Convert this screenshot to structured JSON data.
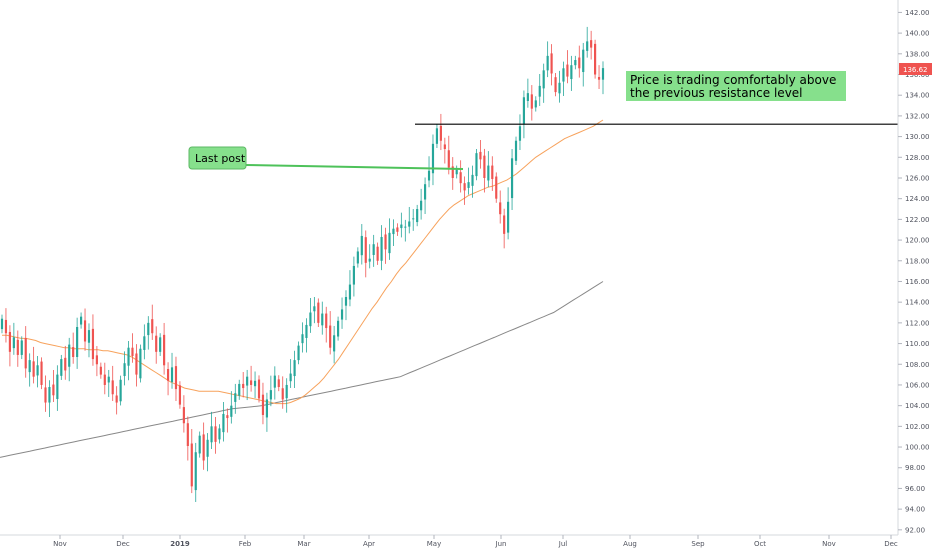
{
  "chart_data": {
    "type": "candlestick",
    "x_ticks": [
      "Nov",
      "Dec",
      "2019",
      "Feb",
      "Mar",
      "Apr",
      "May",
      "Jun",
      "Jul",
      "Aug",
      "Sep",
      "Oct",
      "Nov",
      "Dec"
    ],
    "bold_tick": "2019",
    "y_ticks": [
      "92.00",
      "94.00",
      "96.00",
      "98.00",
      "100.00",
      "102.00",
      "104.00",
      "106.00",
      "108.00",
      "110.00",
      "112.00",
      "114.00",
      "116.00",
      "118.00",
      "120.00",
      "122.00",
      "124.00",
      "126.00",
      "128.00",
      "130.00",
      "132.00",
      "134.00",
      "136.00",
      "138.00",
      "140.00",
      "142.00"
    ],
    "ylim": [
      91.5,
      143.2
    ],
    "last_price": "136.62",
    "resistance_level": 131.2,
    "annotations": {
      "last_post": "Last post",
      "comment_line1": "Price is trading comfortably above",
      "comment_line2": "the previous resistance level"
    },
    "colors": {
      "up": "#26a69a",
      "down": "#ef5350",
      "ma_short": "#f7a25c",
      "ma_long": "#888888",
      "note_bg": "#86e08c",
      "price_tag": "#ef5350"
    },
    "series": {
      "close": [
        112.4,
        111.0,
        109.2,
        110.6,
        108.9,
        110.3,
        107.6,
        108.4,
        106.8,
        107.9,
        106.0,
        104.3,
        105.8,
        105.0,
        107.0,
        108.5,
        107.4,
        109.9,
        108.7,
        111.6,
        112.6,
        110.2,
        111.3,
        108.5,
        108.0,
        107.0,
        106.0,
        106.8,
        105.1,
        104.3,
        106.5,
        108.1,
        109.6,
        108.8,
        107.0,
        109.5,
        110.7,
        112.0,
        111.0,
        109.2,
        110.6,
        107.9,
        106.4,
        107.7,
        105.6,
        104.1,
        102.3,
        100.1,
        96.2,
        99.5,
        101.1,
        98.7,
        100.7,
        102.0,
        100.5,
        101.8,
        103.2,
        102.8,
        104.0,
        105.2,
        106.1,
        105.7,
        106.8,
        106.0,
        106.4,
        104.7,
        103.1,
        104.6,
        105.5,
        106.9,
        105.8,
        104.6,
        106.0,
        107.1,
        108.4,
        109.8,
        110.9,
        111.8,
        113.0,
        113.6,
        112.0,
        112.9,
        111.5,
        109.6,
        110.8,
        112.2,
        113.3,
        114.5,
        115.7,
        117.5,
        118.9,
        120.4,
        117.8,
        118.2,
        119.6,
        118.0,
        120.3,
        119.1,
        120.7,
        121.1,
        120.8,
        121.5,
        121.3,
        121.8,
        122.1,
        123.0,
        123.8,
        125.4,
        126.7,
        129.3,
        130.8,
        129.6,
        128.8,
        127.0,
        126.0,
        126.8,
        125.5,
        124.8,
        125.6,
        126.3,
        128.4,
        127.8,
        126.0,
        127.2,
        125.9,
        124.0,
        122.5,
        120.6,
        123.7,
        127.9,
        129.6,
        131.0,
        133.8,
        134.2,
        132.7,
        133.5,
        134.9,
        136.4,
        137.8,
        136.1,
        134.3,
        135.2,
        136.6,
        135.8,
        136.9,
        137.4,
        136.6,
        138.4,
        139.2,
        138.6,
        136.0,
        135.5,
        136.62
      ],
      "ma_short": [
        110.8,
        110.8,
        110.7,
        110.6,
        110.5,
        110.5,
        110.4,
        110.3,
        110.1,
        110.0,
        109.9,
        109.8,
        109.7,
        109.6,
        109.6,
        109.5,
        109.5,
        109.5,
        109.4,
        109.4,
        109.4,
        109.3,
        109.3,
        109.2,
        109.1,
        109.0,
        108.9,
        108.7,
        108.4,
        108.1,
        107.8,
        107.5,
        107.2,
        106.9,
        106.6,
        106.3,
        106.1,
        105.9,
        105.7,
        105.6,
        105.5,
        105.4,
        105.4,
        105.4,
        105.4,
        105.4,
        105.3,
        105.2,
        105.1,
        105.0,
        104.9,
        104.8,
        104.7,
        104.6,
        104.5,
        104.4,
        104.3,
        104.2,
        104.2,
        104.2,
        104.3,
        104.5,
        104.7,
        105.0,
        105.4,
        105.8,
        106.2,
        106.7,
        107.3,
        107.9,
        108.5,
        109.2,
        109.9,
        110.6,
        111.3,
        112.0,
        112.7,
        113.4,
        114.0,
        114.7,
        115.4,
        116.0,
        116.7,
        117.3,
        117.8,
        118.4,
        119.0,
        119.6,
        120.2,
        120.8,
        121.4,
        122.0,
        122.5,
        123.0,
        123.4,
        123.7,
        124.0,
        124.3,
        124.5,
        124.7,
        124.9,
        125.1,
        125.2,
        125.4,
        125.6,
        125.8,
        126.1,
        126.4,
        126.8,
        127.2,
        127.6,
        128.0,
        128.3,
        128.6,
        128.9,
        129.2,
        129.5,
        129.8,
        130.0,
        130.2,
        130.4,
        130.6,
        130.8,
        131.0,
        131.3,
        131.6
      ],
      "ma_long": [
        99.0,
        99.1,
        99.2,
        99.3,
        99.4,
        99.5,
        99.6,
        99.7,
        99.8,
        99.9,
        100.0,
        100.1,
        100.2,
        100.3,
        100.4,
        100.5,
        100.6,
        100.7,
        100.8,
        100.9,
        101.0,
        101.1,
        101.2,
        101.3,
        101.4,
        101.5,
        101.6,
        101.7,
        101.8,
        101.9,
        102.0,
        102.1,
        102.2,
        102.3,
        102.4,
        102.5,
        102.6,
        102.7,
        102.8,
        102.9,
        103.0,
        103.1,
        103.2,
        103.3,
        103.4,
        103.5,
        103.6,
        103.7,
        103.75,
        103.8,
        103.85,
        103.9,
        103.95,
        104.0,
        104.1,
        104.2,
        104.3,
        104.4,
        104.5,
        104.6,
        104.7,
        104.8,
        104.9,
        105.0,
        105.1,
        105.2,
        105.3,
        105.4,
        105.5,
        105.6,
        105.7,
        105.8,
        105.9,
        106.0,
        106.1,
        106.2,
        106.3,
        106.4,
        106.5,
        106.6,
        106.7,
        106.8,
        107.0,
        107.2,
        107.4,
        107.6,
        107.8,
        108.0,
        108.2,
        108.4,
        108.6,
        108.8,
        109.0,
        109.2,
        109.4,
        109.6,
        109.8,
        110.0,
        110.2,
        110.4,
        110.6,
        110.8,
        111.0,
        111.2,
        111.4,
        111.6,
        111.8,
        112.0,
        112.2,
        112.4,
        112.6,
        112.8,
        113.0,
        113.3,
        113.6,
        113.9,
        114.2,
        114.5,
        114.8,
        115.1,
        115.4,
        115.7,
        116.0
      ]
    }
  }
}
